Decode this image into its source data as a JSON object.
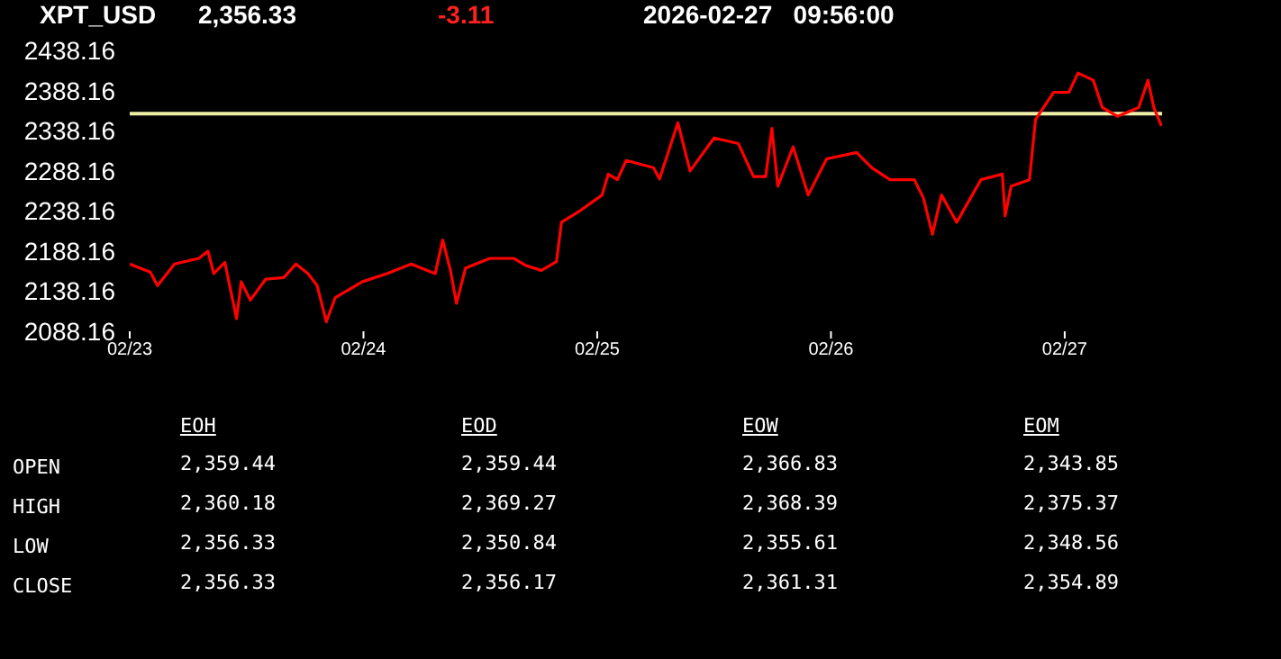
{
  "chart_data": [
    {
      "type": "line",
      "title": "XPT_USD",
      "annotations": [
        "2,356.33",
        "-3.11",
        "2026-02-27   09:56:00"
      ],
      "series": [
        {
          "color": "#ff0000",
          "x": [
            "2026-02-23T00:00",
            "2026-02-23T02:07",
            "2026-02-23T02:51",
            "2026-02-23T04:36",
            "2026-02-23T07:06",
            "2026-02-23T08:02",
            "2026-02-23T08:38",
            "2026-02-23T09:46",
            "2026-02-23T10:58",
            "2026-02-23T11:27",
            "2026-02-23T12:23",
            "2026-02-23T13:57",
            "2026-02-23T15:49",
            "2026-02-23T17:04",
            "2026-02-23T18:19",
            "2026-02-23T19:15",
            "2026-02-23T20:11",
            "2026-02-23T21:06",
            "2026-02-23T23:54",
            "2026-02-24T02:24",
            "2026-02-24T04:54",
            "2026-02-24T07:22",
            "2026-02-24T08:08",
            "2026-02-24T08:56",
            "2026-02-24T09:33",
            "2026-02-24T10:29",
            "2026-02-24T12:59",
            "2026-02-24T15:27",
            "2026-02-24T16:42",
            "2026-02-24T18:16",
            "2026-02-24T19:49",
            "2026-02-24T20:20",
            "2026-02-24T22:19",
            "2026-02-25T00:30",
            "2026-02-25T01:08",
            "2026-02-25T02:04",
            "2026-02-25T02:59",
            "2026-02-25T05:47",
            "2026-02-25T06:24",
            "2026-02-25T08:17",
            "2026-02-25T09:32",
            "2026-02-25T12:00",
            "2026-02-25T14:30",
            "2026-02-25T16:03",
            "2026-02-25T17:18",
            "2026-02-25T17:56",
            "2026-02-25T18:33",
            "2026-02-25T20:07",
            "2026-02-25T21:40",
            "2026-02-25T23:33",
            "2026-02-26T02:38",
            "2026-02-26T04:12",
            "2026-02-26T06:04",
            "2026-02-26T08:34",
            "2026-02-26T09:30",
            "2026-02-26T10:25",
            "2026-02-26T11:21",
            "2026-02-26T12:55",
            "2026-02-26T15:24",
            "2026-02-26T17:36",
            "2026-02-26T17:53",
            "2026-02-26T18:30",
            "2026-02-26T20:23",
            "2026-02-26T21:00",
            "2026-02-26T22:52",
            "2026-02-27T00:26",
            "2026-02-27T01:22",
            "2026-02-27T02:56",
            "2026-02-27T03:52",
            "2026-02-27T05:25",
            "2026-02-27T07:36",
            "2026-02-27T08:33",
            "2026-02-27T09:09",
            "2026-02-27T09:56"
          ],
          "values": [
            2172,
            2162,
            2145,
            2172,
            2179,
            2188,
            2160,
            2174,
            2104,
            2150,
            2127,
            2153,
            2155,
            2172,
            2160,
            2145,
            2100,
            2130,
            2150,
            2160,
            2172,
            2160,
            2202,
            2164,
            2123,
            2167,
            2179,
            2179,
            2170,
            2164,
            2175,
            2224,
            2239,
            2258,
            2284,
            2277,
            2301,
            2292,
            2278,
            2348,
            2288,
            2329,
            2322,
            2281,
            2281,
            2341,
            2269,
            2318,
            2258,
            2303,
            2311,
            2292,
            2277,
            2277,
            2254,
            2209,
            2258,
            2224,
            2277,
            2284,
            2232,
            2269,
            2277,
            2352,
            2386,
            2386,
            2410,
            2401,
            2367,
            2356,
            2367,
            2401,
            2367,
            2344
          ]
        }
      ],
      "xlim": [
        "2026-02-23T00:00",
        "2026-02-27T10:00"
      ],
      "xticks": [
        {
          "value": "2026-02-23",
          "label": "02/23"
        },
        {
          "value": "2026-02-24",
          "label": "02/24"
        },
        {
          "value": "2026-02-25",
          "label": "02/25"
        },
        {
          "value": "2026-02-26",
          "label": "02/26"
        },
        {
          "value": "2026-02-27",
          "label": "02/27"
        }
      ],
      "ylim": [
        2088.16,
        2438.16
      ],
      "yticks": [
        2088.16,
        2138.16,
        2188.16,
        2238.16,
        2288.16,
        2338.16,
        2388.16,
        2438.16
      ],
      "ref_lines": [
        {
          "axis": "y",
          "value": 2359.44,
          "color": "#eeeea8"
        }
      ],
      "grid": false,
      "legend": false,
      "marker": "none",
      "line_style": "solid"
    },
    {
      "type": "other",
      "categories": [
        "EOH",
        "EOD",
        "EOW",
        "EOM"
      ],
      "y_categories": [
        "OPEN",
        "HIGH",
        "LOW",
        "CLOSE"
      ],
      "annotations": [
        "2,359.44",
        "2,359.44",
        "2,366.83",
        "2,343.85",
        "2,360.18",
        "2,369.27",
        "2,368.39",
        "2,375.37",
        "2,356.33",
        "2,350.84",
        "2,355.61",
        "2,348.56",
        "2,356.33",
        "2,356.17",
        "2,361.31",
        "2,354.89"
      ]
    }
  ]
}
